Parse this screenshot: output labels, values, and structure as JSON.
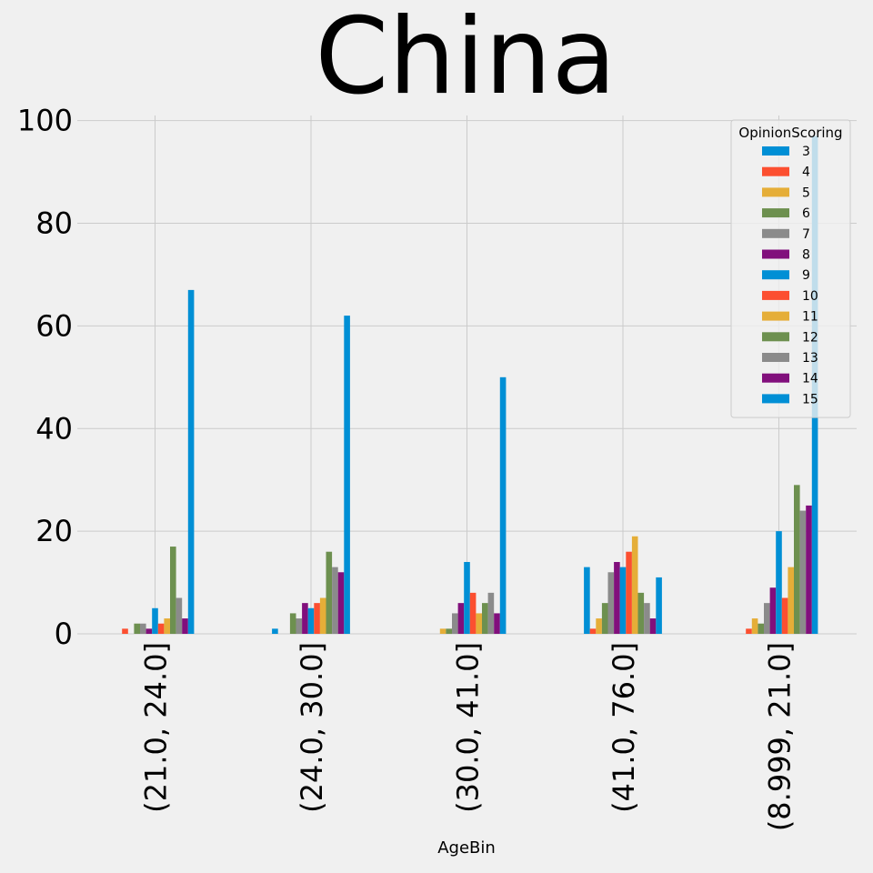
{
  "chart_data": {
    "type": "bar",
    "title": "China",
    "xlabel": "AgeBin",
    "ylabel": "",
    "ylim": [
      0,
      101
    ],
    "yticks": [
      0,
      20,
      40,
      60,
      80,
      100
    ],
    "grid": true,
    "legend_position": "top-right",
    "legend_title": "OpinionScoring",
    "categories": [
      "(21.0, 24.0]",
      "(24.0, 30.0]",
      "(30.0, 41.0]",
      "(41.0, 76.0]",
      "(8.999, 21.0]"
    ],
    "series": [
      {
        "name": "3",
        "color": "#008fd5",
        "values": [
          0,
          1,
          0,
          13,
          0
        ]
      },
      {
        "name": "4",
        "color": "#fc4f30",
        "values": [
          1,
          0,
          0,
          1,
          1
        ]
      },
      {
        "name": "5",
        "color": "#e5ae38",
        "values": [
          0,
          0,
          1,
          3,
          3
        ]
      },
      {
        "name": "6",
        "color": "#6d904f",
        "values": [
          2,
          4,
          1,
          6,
          2
        ]
      },
      {
        "name": "7",
        "color": "#8b8b8b",
        "values": [
          2,
          3,
          4,
          12,
          6
        ]
      },
      {
        "name": "8",
        "color": "#810f7c",
        "values": [
          1,
          6,
          6,
          14,
          9
        ]
      },
      {
        "name": "9",
        "color": "#008fd5",
        "values": [
          5,
          5,
          14,
          13,
          20
        ]
      },
      {
        "name": "10",
        "color": "#fc4f30",
        "values": [
          2,
          6,
          8,
          16,
          7
        ]
      },
      {
        "name": "11",
        "color": "#e5ae38",
        "values": [
          3,
          7,
          4,
          19,
          13
        ]
      },
      {
        "name": "12",
        "color": "#6d904f",
        "values": [
          17,
          16,
          6,
          8,
          29
        ]
      },
      {
        "name": "13",
        "color": "#8b8b8b",
        "values": [
          7,
          13,
          8,
          6,
          24
        ]
      },
      {
        "name": "14",
        "color": "#810f7c",
        "values": [
          3,
          12,
          4,
          3,
          25
        ]
      },
      {
        "name": "15",
        "color": "#008fd5",
        "values": [
          67,
          62,
          50,
          11,
          97
        ]
      }
    ]
  }
}
